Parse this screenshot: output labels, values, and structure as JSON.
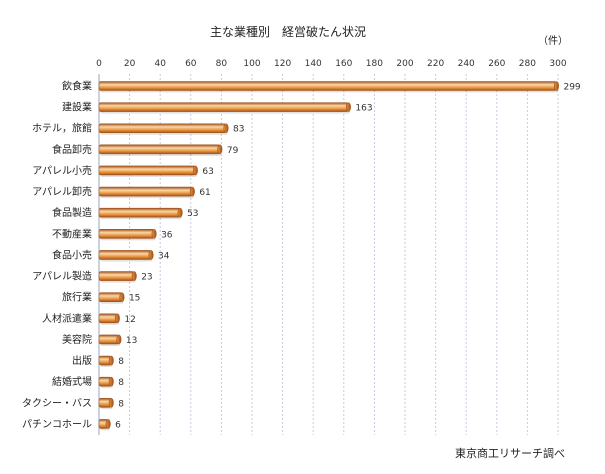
{
  "chart_data": {
    "type": "bar",
    "orientation": "horizontal",
    "title": "主な業種別　経営破たん状況",
    "unit_label": "（件）",
    "source": "東京商工リサーチ調べ",
    "categories": [
      "飲食業",
      "建設業",
      "ホテル，旅館",
      "食品卸売",
      "アパレル小売",
      "アパレル卸売",
      "食品製造",
      "不動産業",
      "食品小売",
      "アパレル製造",
      "旅行業",
      "人材派遣業",
      "美容院",
      "出版",
      "結婚式場",
      "タクシー・バス",
      "パチンコホール"
    ],
    "values": [
      299,
      163,
      83,
      79,
      63,
      61,
      53,
      36,
      34,
      23,
      15,
      12,
      13,
      8,
      8,
      8,
      6
    ],
    "xlim": [
      0,
      300
    ],
    "xticks": [
      0,
      20,
      40,
      60,
      80,
      100,
      120,
      140,
      160,
      180,
      200,
      220,
      240,
      260,
      280,
      300
    ],
    "grid": true,
    "legend": "none",
    "colors": {
      "bar_dark": "#a0521c",
      "bar_mid": "#e8923a",
      "bar_light": "#fbd7a6",
      "grid": "#c5cbe0"
    }
  }
}
